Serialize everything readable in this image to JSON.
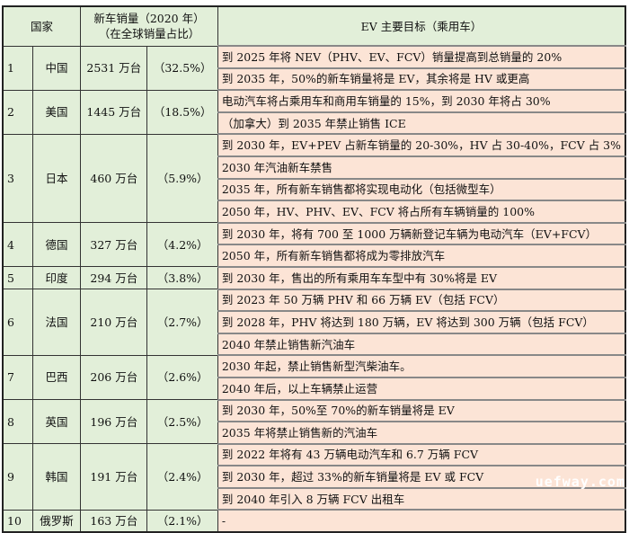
{
  "header": {
    "country": "国家",
    "sales_line1": "新车销量（2020 年）",
    "sales_line2": "（在全球销量占比）",
    "goals": "EV 主要目标（乘用车）"
  },
  "rows": [
    {
      "rank": "1",
      "country": "中国",
      "sales": "2531 万台",
      "share": "（32.5%）",
      "goals": [
        "到 2025 年将 NEV（PHV、EV、FCV）销量提高到总销量的 20%",
        "到 2035 年，50%的新车销量将是 EV，其余将是 HV 或更高"
      ]
    },
    {
      "rank": "2",
      "country": "美国",
      "sales": "1445 万台",
      "share": "（18.5%）",
      "goals": [
        "电动汽车将占乘用车和商用车销量的 15%，到 2030 年将占 30%",
        "（加拿大）到 2035 年禁止销售 ICE"
      ]
    },
    {
      "rank": "3",
      "country": "日本",
      "sales": "460 万台",
      "share": "（5.9%）",
      "goals": [
        "到 2030 年，EV+PEV 占新车销量的 20-30%，HV 占 30-40%，FCV 占 3%",
        "2030 年汽油新车禁售",
        "2035 年，所有新车销售都将实现电动化（包括微型车）",
        "2050 年，HV、PHV、EV、FCV 将占所有车辆销量的 100%"
      ]
    },
    {
      "rank": "4",
      "country": "德国",
      "sales": "327 万台",
      "share": "（4.2%）",
      "goals": [
        "到 2030 年，将有 700 至 1000 万辆新登记车辆为电动汽车（EV+FCV）",
        "2050 年，所有新车销售都将成为零排放汽车"
      ]
    },
    {
      "rank": "5",
      "country": "印度",
      "sales": "294 万台",
      "share": "（3.8%）",
      "goals": [
        "到 2030 年，售出的所有乘用车车型中有 30%将是 EV"
      ]
    },
    {
      "rank": "6",
      "country": "法国",
      "sales": "210 万台",
      "share": "（2.7%）",
      "goals": [
        "到 2023 年 50 万辆 PHV 和 66 万辆 EV（包括 FCV）",
        "到 2028 年，PHV 将达到 180 万辆，EV 将达到 300 万辆（包括 FCV）",
        "2040 年禁止销售新汽油车"
      ]
    },
    {
      "rank": "7",
      "country": "巴西",
      "sales": "206 万台",
      "share": "（2.6%）",
      "goals": [
        "2030 年起，禁止销售新型汽柴油车。",
        "2040 年后，以上车辆禁止运营"
      ]
    },
    {
      "rank": "8",
      "country": "英国",
      "sales": "196 万台",
      "share": "（2.5%）",
      "goals": [
        "到 2030 年，50%至 70%的新车销量将是 EV",
        "2035 年将禁止销售新的汽油车"
      ]
    },
    {
      "rank": "9",
      "country": "韩国",
      "sales": "191 万台",
      "share": "（2.4%）",
      "goals": [
        "到 2022 年将有 43 万辆电动汽车和 6.7 万辆 FCV",
        "到 2030 年，超过 33%的新车销量将是 EV 或 FCV",
        "到 2040 年引入 8 万辆 FCV 出租车"
      ]
    },
    {
      "rank": "10",
      "country": "俄罗斯",
      "sales": "163 万台",
      "share": "（2.1%）",
      "goals": [
        "-"
      ]
    }
  ],
  "watermark": "uefway.com",
  "colors": {
    "left_bg": "#e2efd9",
    "right_bg": "#fce4d6"
  }
}
